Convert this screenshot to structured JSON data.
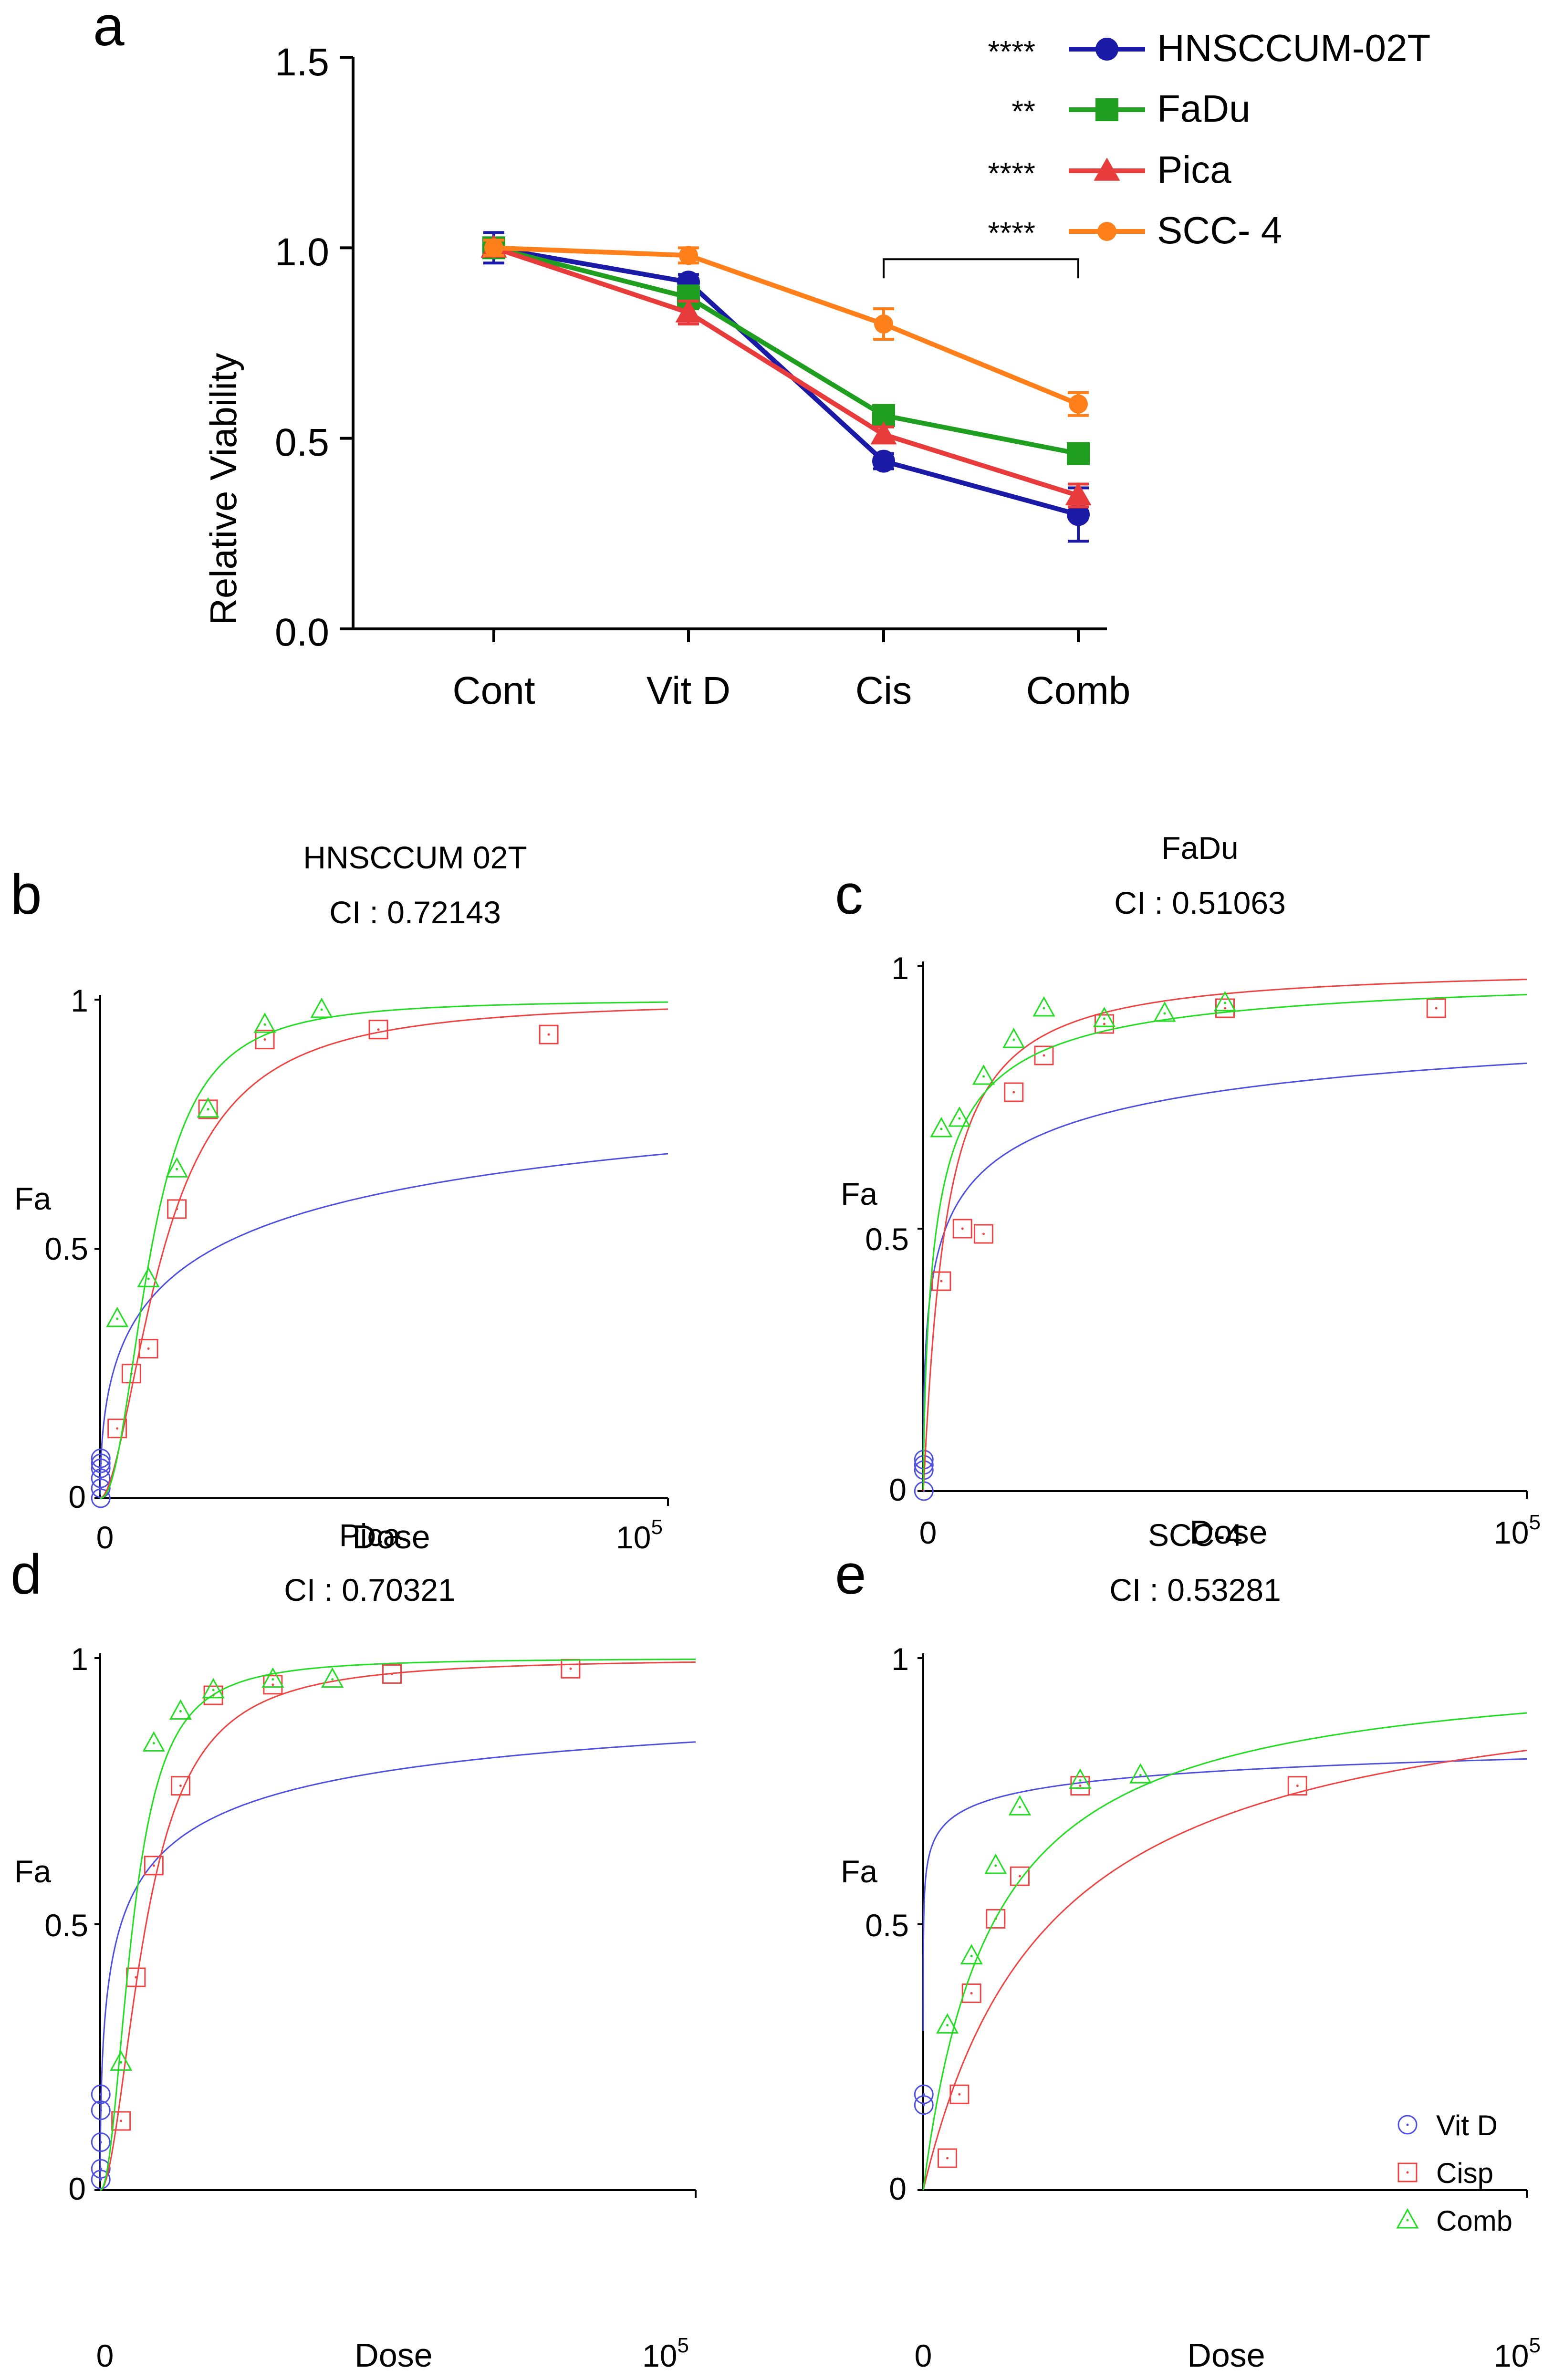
{
  "colors": {
    "navy": "#1a1aa6",
    "green": "#1f9e1f",
    "red": "#e83b3b",
    "darkred": "#c00000",
    "orange": "#ff7f1a",
    "axis": "#000000",
    "vitd": "#5050e0",
    "cisp": "#ee4444",
    "comb": "#22dd22"
  },
  "chart_data": [
    {
      "panel": "a",
      "type": "line",
      "ylabel": "Relative Viability",
      "ylim": [
        0,
        1.5
      ],
      "yticks": [
        "0.0",
        "0.5",
        "1.0",
        "1.5"
      ],
      "categories": [
        "Cont",
        "Vit D",
        "Cis",
        "Comb"
      ],
      "series": [
        {
          "name": "HNSCCUM-02T",
          "marker": "circle",
          "significance": "****",
          "color": "#1a1aa6",
          "values": [
            1.0,
            0.91,
            0.44,
            0.3
          ],
          "errors": [
            0.04,
            0.02,
            0.02,
            0.07
          ]
        },
        {
          "name": "FaDu",
          "marker": "square",
          "significance": "**",
          "color": "#1f9e1f",
          "values": [
            1.0,
            0.87,
            0.56,
            0.46
          ],
          "errors": [
            0.02,
            0.03,
            0.02,
            0.02
          ]
        },
        {
          "name": "Pica",
          "marker": "triangle",
          "significance": "****",
          "color": "#e83b3b",
          "values": [
            1.0,
            0.83,
            0.51,
            0.35
          ],
          "errors": [
            0.02,
            0.03,
            0.02,
            0.03
          ]
        },
        {
          "name": "SCC- 4",
          "marker": "circle",
          "significance": "****",
          "color": "#ff7f1a",
          "values": [
            1.0,
            0.98,
            0.8,
            0.59
          ],
          "errors": [
            0.02,
            0.02,
            0.04,
            0.03
          ]
        }
      ],
      "bracket": {
        "from": "Cis",
        "to": "Comb",
        "y": 0.97
      }
    },
    {
      "panel": "b",
      "type": "scatter",
      "title": "HNSCCUM 02T",
      "subtitle": "CI : 0.72143",
      "xlabel": "Dose",
      "ylabel": "Fa",
      "xtick_left": "0",
      "xtick_right_base": "10",
      "xtick_right_exp": "5",
      "yticks": [
        "0",
        "0.5",
        "1"
      ],
      "xlim": [
        0,
        100000
      ],
      "ylim": [
        0,
        1
      ],
      "series": [
        {
          "name": "Vit D",
          "x": [
            100,
            100,
            100,
            100,
            100,
            100
          ],
          "y": [
            0.0,
            0.02,
            0.04,
            0.06,
            0.07,
            0.08
          ],
          "curve": {
            "dm": 20000,
            "m": 0.5
          }
        },
        {
          "name": "Cisp",
          "x": [
            3000,
            5500,
            8500,
            13500,
            19000,
            29000,
            49000,
            79000
          ],
          "y": [
            0.14,
            0.25,
            0.3,
            0.58,
            0.78,
            0.92,
            0.94,
            0.93
          ],
          "curve": {
            "dm": 11200,
            "m": 1.8
          }
        },
        {
          "name": "Comb",
          "x": [
            3000,
            8500,
            13500,
            19000,
            29000,
            39000
          ],
          "y": [
            0.36,
            0.44,
            0.66,
            0.78,
            0.95,
            0.98
          ],
          "curve": {
            "dm": 9000,
            "m": 2.2
          }
        }
      ]
    },
    {
      "panel": "c",
      "type": "scatter",
      "title": "FaDu",
      "subtitle": "CI : 0.51063",
      "xlabel": "Dose",
      "ylabel": "Fa",
      "xtick_left": "0",
      "xtick_right_base": "10",
      "xtick_right_exp": "5",
      "yticks": [
        "0",
        "0.5",
        "1"
      ],
      "xlim": [
        0,
        100000
      ],
      "ylim": [
        0,
        1
      ],
      "series": [
        {
          "name": "Vit D",
          "x": [
            100,
            100,
            100,
            100
          ],
          "y": [
            0.0,
            0.04,
            0.05,
            0.06
          ],
          "curve": {
            "dm": 3700,
            "m": 0.45
          }
        },
        {
          "name": "Cisp",
          "x": [
            3000,
            6500,
            10000,
            15000,
            20000,
            30000,
            50000,
            85000
          ],
          "y": [
            0.4,
            0.5,
            0.49,
            0.76,
            0.83,
            0.89,
            0.92,
            0.92
          ],
          "curve": {
            "dm": 3600,
            "m": 1.1
          }
        },
        {
          "name": "Comb",
          "x": [
            3000,
            6000,
            10000,
            15000,
            20000,
            30000,
            40000,
            50000
          ],
          "y": [
            0.69,
            0.71,
            0.79,
            0.86,
            0.92,
            0.9,
            0.91,
            0.93
          ],
          "curve": {
            "dm": 2200,
            "m": 0.75
          }
        }
      ]
    },
    {
      "panel": "d",
      "type": "scatter",
      "title": "Pica",
      "subtitle": "CI : 0.70321",
      "xlabel": "Dose",
      "ylabel": "Fa",
      "xtick_left": "0",
      "xtick_right_base": "10",
      "xtick_right_exp": "5",
      "yticks": [
        "0",
        "0.5",
        "1"
      ],
      "xlim": [
        0,
        100000
      ],
      "ylim": [
        0,
        1
      ],
      "series": [
        {
          "name": "Vit D",
          "x": [
            100,
            100,
            100,
            100,
            100
          ],
          "y": [
            0.02,
            0.04,
            0.09,
            0.15,
            0.18
          ],
          "curve": {
            "dm": 3500,
            "m": 0.5
          }
        },
        {
          "name": "Cisp",
          "x": [
            3500,
            6000,
            9000,
            13500,
            19000,
            29000,
            49000,
            79000
          ],
          "y": [
            0.13,
            0.4,
            0.61,
            0.76,
            0.93,
            0.95,
            0.97,
            0.98
          ],
          "curve": {
            "dm": 7700,
            "m": 1.9
          }
        },
        {
          "name": "Comb",
          "x": [
            3500,
            9000,
            13500,
            19000,
            29000,
            39000
          ],
          "y": [
            0.24,
            0.84,
            0.9,
            0.94,
            0.96,
            0.96
          ],
          "curve": {
            "dm": 5500,
            "m": 2.1
          }
        }
      ]
    },
    {
      "panel": "e",
      "type": "scatter",
      "title": "SCC-4",
      "subtitle": "CI : 0.53281",
      "xlabel": "Dose",
      "ylabel": "Fa",
      "xtick_left": "0",
      "xtick_right_base": "10",
      "xtick_right_exp": "5",
      "yticks": [
        "0",
        "0.5",
        "1"
      ],
      "xlim": [
        0,
        100000
      ],
      "ylim": [
        0,
        1
      ],
      "legend": {
        "position": "bottom-right",
        "entries": [
          "Vit D",
          "Cisp",
          "Comb"
        ]
      },
      "series": [
        {
          "name": "Vit D",
          "x": [
            100,
            100
          ],
          "y": [
            0.16,
            0.18
          ],
          "curve": {
            "dm": 70,
            "m": 0.2
          }
        },
        {
          "name": "Cisp",
          "x": [
            4000,
            6000,
            8000,
            12000,
            16000,
            26000,
            62000
          ],
          "y": [
            0.06,
            0.18,
            0.37,
            0.51,
            0.59,
            0.76,
            0.76
          ],
          "curve": {
            "dm": 21000,
            "m": 1.0
          }
        },
        {
          "name": "Comb",
          "x": [
            4000,
            8000,
            12000,
            16000,
            26000,
            36000
          ],
          "y": [
            0.31,
            0.44,
            0.61,
            0.72,
            0.77,
            0.78
          ],
          "curve": {
            "dm": 11500,
            "m": 1.0
          }
        }
      ]
    }
  ],
  "panel_letters": [
    "a",
    "b",
    "c",
    "d",
    "e"
  ]
}
